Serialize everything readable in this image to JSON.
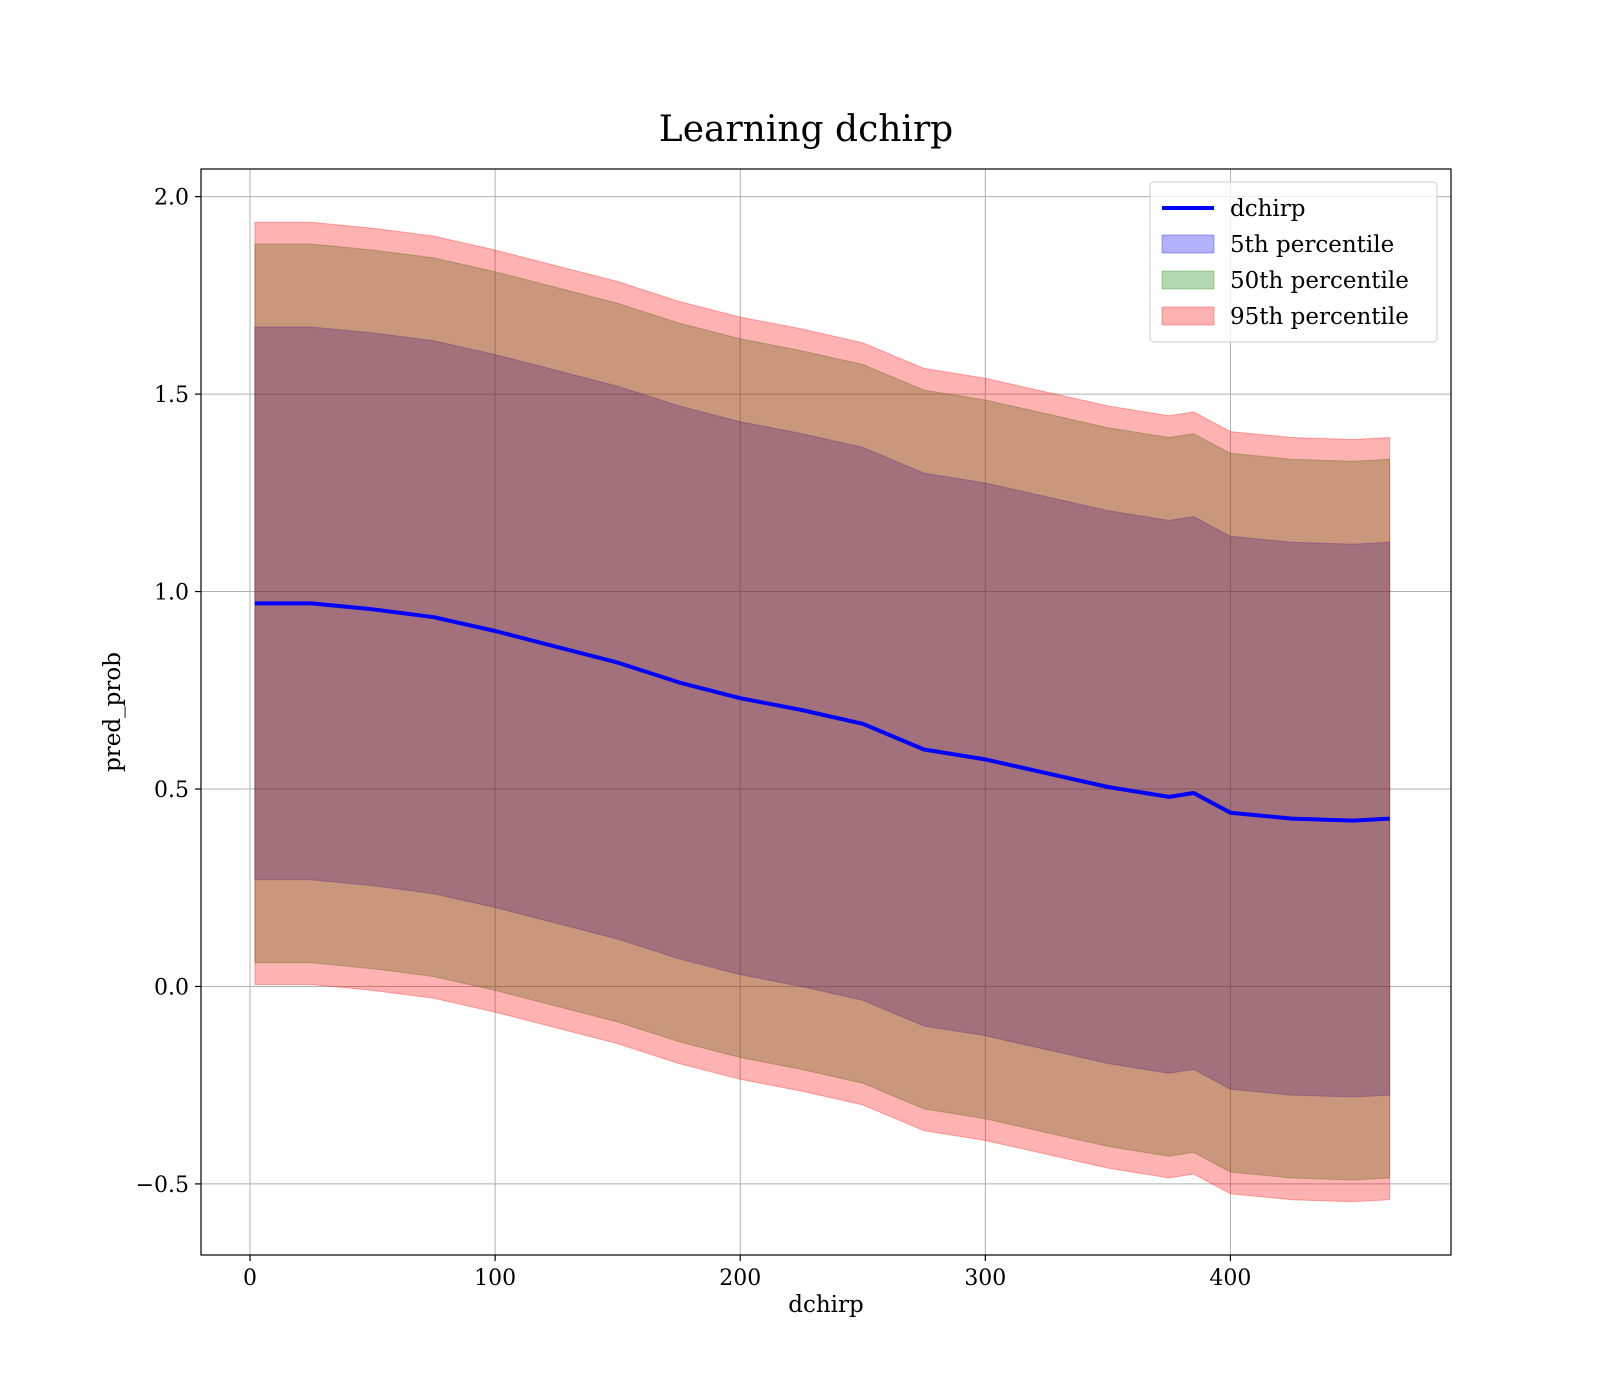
{
  "chart_data": {
    "type": "line",
    "title": "Learning dchirp",
    "xlabel": "dchirp",
    "ylabel": "pred_prob",
    "xlim": [
      -20,
      490
    ],
    "ylim": [
      -0.68,
      2.07
    ],
    "xticks": [
      0,
      100,
      200,
      300,
      400
    ],
    "xtick_labels": [
      "0",
      "100",
      "200",
      "300",
      "400"
    ],
    "yticks": [
      -0.5,
      0.0,
      0.5,
      1.0,
      1.5,
      2.0
    ],
    "ytick_labels": [
      "−0.5",
      "0.0",
      "0.5",
      "1.0",
      "1.5",
      "2.0"
    ],
    "grid": true,
    "legend_position": "top-right",
    "legend": [
      "dchirp",
      "5th percentile",
      "50th percentile",
      "95th percentile"
    ],
    "x": [
      2,
      25,
      50,
      75,
      100,
      125,
      150,
      175,
      200,
      225,
      250,
      275,
      300,
      325,
      350,
      375,
      385,
      400,
      425,
      450,
      465
    ],
    "series": [
      {
        "name": "dchirp",
        "kind": "line",
        "color": "#0000ff",
        "y": [
          0.97,
          0.97,
          0.955,
          0.935,
          0.9,
          0.86,
          0.82,
          0.77,
          0.73,
          0.7,
          0.665,
          0.6,
          0.575,
          0.54,
          0.505,
          0.48,
          0.49,
          0.44,
          0.425,
          0.42,
          0.425
        ]
      },
      {
        "name": "5th percentile",
        "kind": "band",
        "color": "#0000ff",
        "lower": [
          0.27,
          0.27,
          0.255,
          0.235,
          0.2,
          0.16,
          0.12,
          0.07,
          0.03,
          0.0,
          -0.035,
          -0.1,
          -0.125,
          -0.16,
          -0.195,
          -0.22,
          -0.21,
          -0.26,
          -0.275,
          -0.28,
          -0.275
        ],
        "upper": [
          1.67,
          1.67,
          1.655,
          1.635,
          1.6,
          1.56,
          1.52,
          1.47,
          1.43,
          1.4,
          1.365,
          1.3,
          1.275,
          1.24,
          1.205,
          1.18,
          1.19,
          1.14,
          1.125,
          1.12,
          1.125
        ]
      },
      {
        "name": "50th percentile",
        "kind": "band",
        "color": "#008000",
        "lower": [
          0.06,
          0.06,
          0.045,
          0.025,
          -0.01,
          -0.05,
          -0.09,
          -0.14,
          -0.18,
          -0.21,
          -0.245,
          -0.31,
          -0.335,
          -0.37,
          -0.405,
          -0.43,
          -0.42,
          -0.47,
          -0.485,
          -0.49,
          -0.485
        ],
        "upper": [
          1.88,
          1.88,
          1.865,
          1.845,
          1.81,
          1.77,
          1.73,
          1.68,
          1.64,
          1.61,
          1.575,
          1.51,
          1.485,
          1.45,
          1.415,
          1.39,
          1.4,
          1.35,
          1.335,
          1.33,
          1.335
        ]
      },
      {
        "name": "95th percentile",
        "kind": "band",
        "color": "#ff0000",
        "lower": [
          0.005,
          0.005,
          -0.01,
          -0.03,
          -0.065,
          -0.105,
          -0.145,
          -0.195,
          -0.235,
          -0.265,
          -0.3,
          -0.365,
          -0.39,
          -0.425,
          -0.46,
          -0.485,
          -0.475,
          -0.525,
          -0.54,
          -0.545,
          -0.54
        ],
        "upper": [
          1.935,
          1.935,
          1.92,
          1.9,
          1.865,
          1.825,
          1.785,
          1.735,
          1.695,
          1.665,
          1.63,
          1.565,
          1.54,
          1.505,
          1.47,
          1.445,
          1.455,
          1.405,
          1.39,
          1.385,
          1.39
        ]
      }
    ]
  }
}
